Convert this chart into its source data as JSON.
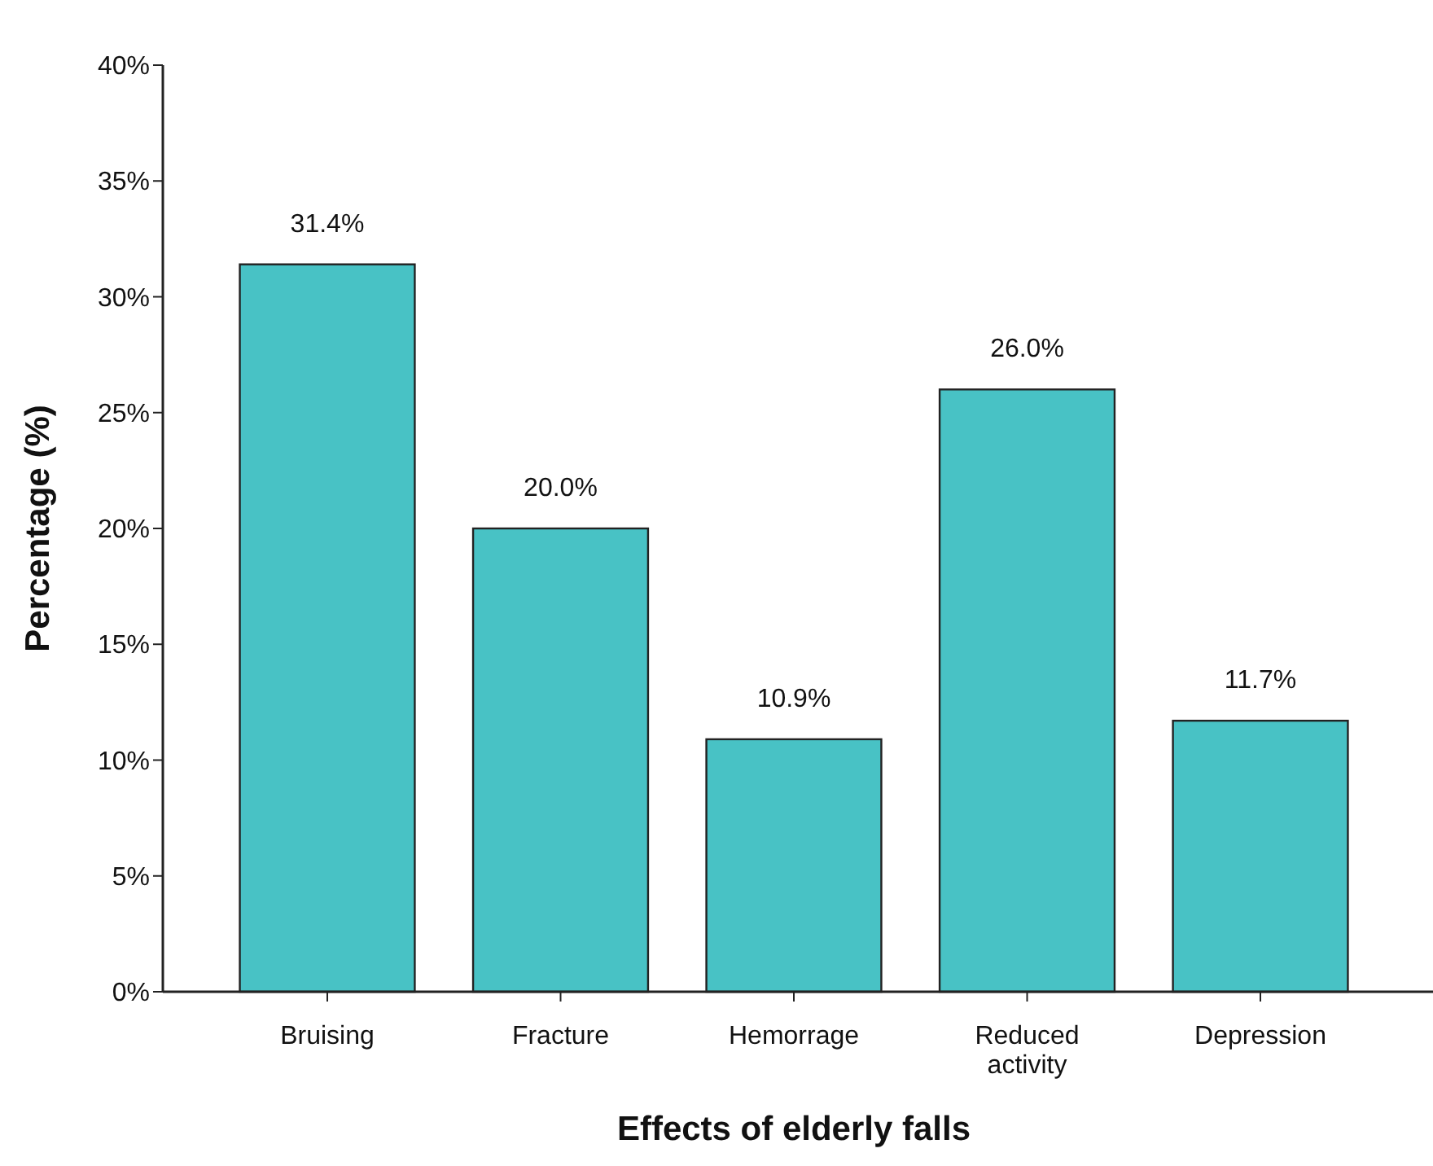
{
  "chart_data": {
    "type": "bar",
    "xlabel": "Effects of elderly falls",
    "ylabel": "Percentage (%)",
    "categories": [
      "Bruising",
      "Fracture",
      "Hemorrage",
      "Reduced activity",
      "Depression"
    ],
    "values": [
      31.4,
      20.0,
      10.9,
      26.0,
      11.7
    ],
    "value_labels": [
      "31.4%",
      "20.0%",
      "10.9%",
      "26.0%",
      "11.7%"
    ],
    "color": "#48c2c5",
    "ylim": [
      0,
      40
    ],
    "yticks": [
      {
        "value": 0,
        "label": "0%"
      },
      {
        "value": 5,
        "label": "5%"
      },
      {
        "value": 10,
        "label": "10%"
      },
      {
        "value": 15,
        "label": "15%"
      },
      {
        "value": 20,
        "label": "20%"
      },
      {
        "value": 25,
        "label": "25%"
      },
      {
        "value": 30,
        "label": "30%"
      },
      {
        "value": 35,
        "label": "35%"
      },
      {
        "value": 40,
        "label": "40%"
      }
    ],
    "grid": false
  }
}
